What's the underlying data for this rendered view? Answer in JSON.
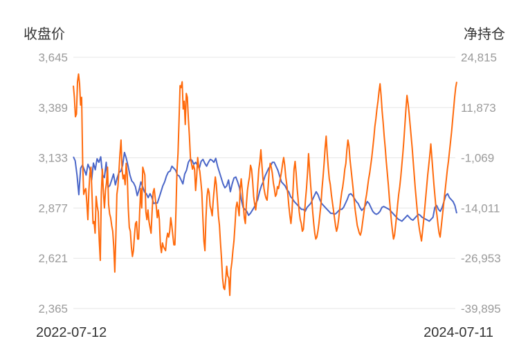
{
  "chart_data": {
    "type": "line",
    "left_axis_title": "收盘价",
    "right_axis_title": "净持仓",
    "x_start_label": "2022-07-12",
    "x_end_label": "2024-07-11",
    "left_ticks": [
      "3,645",
      "3,389",
      "3,133",
      "2,877",
      "2,621",
      "2,365"
    ],
    "right_ticks": [
      "24,815",
      "11,873",
      "-1,069",
      "-14,011",
      "-26,953",
      "-39,895"
    ],
    "left_range": [
      2365,
      3645
    ],
    "right_range": [
      -39895,
      24815
    ],
    "grid": true,
    "colors": {
      "close": "#4a66c8",
      "net": "#ff6a0c"
    },
    "series": [
      {
        "key": "close",
        "axis": "left",
        "values": [
          3138,
          3118,
          3045,
          2945,
          3080,
          3096,
          3072,
          3045,
          3100,
          3078,
          3020,
          3106,
          3072,
          3128,
          3110,
          3138,
          3045,
          3032,
          3110,
          2982,
          2992,
          3020,
          3050,
          2995,
          3030,
          3058,
          3065,
          3095,
          3160,
          3130,
          3090,
          3045,
          3015,
          3005,
          2985,
          2940,
          2970,
          3010,
          2985,
          2958,
          2950,
          2930,
          2950,
          2932,
          2900,
          2903,
          2902,
          2930,
          2960,
          2990,
          3010,
          3040,
          3060,
          3065,
          3090,
          3080,
          3070,
          3045,
          3040,
          3020,
          3000,
          3050,
          3070,
          3110,
          3125,
          3120,
          3100,
          3110,
          3095,
          3080,
          3115,
          3125,
          3105,
          3090,
          3110,
          3125,
          3120,
          3110,
          3130,
          3090,
          3060,
          3030,
          3000,
          2980,
          2990,
          3020,
          2960,
          3000,
          3030,
          3035,
          3010,
          2980,
          2920,
          2880,
          2870,
          2860,
          2840,
          2850,
          2865,
          2880,
          2900,
          2920,
          2960,
          2990,
          3010,
          3040,
          3060,
          3080,
          3090,
          3110,
          3110,
          3090,
          3070,
          3040,
          3010,
          3000,
          2990,
          2970,
          2960,
          2935,
          2925,
          2910,
          2900,
          2890,
          2880,
          2870,
          2870,
          2860,
          2880,
          2890,
          2900,
          2920,
          2940,
          2960,
          2945,
          2920,
          2900,
          2890,
          2880,
          2870,
          2860,
          2850,
          2850,
          2845,
          2850,
          2860,
          2870,
          2870,
          2880,
          2900,
          2920,
          2945,
          2950,
          2940,
          2925,
          2910,
          2900,
          2880,
          2865,
          2875,
          2890,
          2910,
          2900,
          2880,
          2860,
          2850,
          2845,
          2850,
          2860,
          2880,
          2885,
          2880,
          2875,
          2870,
          2860,
          2850,
          2840,
          2830,
          2820,
          2815,
          2810,
          2820,
          2830,
          2840,
          2830,
          2820,
          2815,
          2825,
          2835,
          2845,
          2840,
          2830,
          2825,
          2820,
          2815,
          2810,
          2820,
          2830,
          2880,
          2890,
          2870,
          2860,
          2880,
          2910,
          2940,
          2950,
          2930,
          2920,
          2910,
          2890,
          2850
        ]
      },
      {
        "key": "net",
        "axis": "right",
        "values": [
          17500,
          14500,
          9500,
          10200,
          18500,
          20500,
          18000,
          12500,
          14500,
          -2500,
          -10500,
          -9500,
          -9000,
          -12500,
          -17000,
          -9500,
          -5000,
          -3500,
          -10500,
          -18000,
          -17500,
          -20500,
          -11000,
          -13500,
          -15000,
          -22500,
          -27500,
          -10000,
          -4000,
          -10000,
          -14000,
          -9500,
          -7500,
          -3500,
          -13000,
          -15500,
          -16500,
          -18500,
          -20000,
          -24000,
          -30500,
          -21500,
          -10500,
          -8500,
          -4500,
          0,
          3500,
          -4000,
          -6500,
          -5500,
          -8000,
          -2500,
          -5500,
          -14000,
          -19000,
          -20000,
          -24000,
          -26500,
          -25000,
          -21000,
          -18000,
          -17500,
          -22000,
          -22000,
          -15000,
          -9000,
          -14000,
          -3500,
          -4500,
          -5500,
          -15000,
          -17000,
          -14500,
          -17500,
          -19000,
          -20500,
          -15000,
          -10000,
          -9000,
          -11500,
          -13500,
          -16500,
          -14500,
          -17000,
          -23500,
          -25500,
          -23000,
          -24000,
          -24500,
          -25000,
          -22000,
          -20500,
          -21500,
          -20000,
          -16500,
          -18500,
          -21000,
          -23500,
          -23500,
          -15000,
          -4500,
          0,
          8500,
          17500,
          17000,
          18500,
          11500,
          13500,
          7500,
          15500,
          14500,
          9000,
          4500,
          -1000,
          -2500,
          -4000,
          -3000,
          -4000,
          -9500,
          -6000,
          -1000,
          -3500,
          -4500,
          -7000,
          -10000,
          -16500,
          -22500,
          -25000,
          -16500,
          -11000,
          -9000,
          -10000,
          -13500,
          -14500,
          -16000,
          -12000,
          -9000,
          -6000,
          -8000,
          -12000,
          -16000,
          -18500,
          -23000,
          -27000,
          -32000,
          -34500,
          -35000,
          -32500,
          -29000,
          -31500,
          -32000,
          -36500,
          -30000,
          -28000,
          -25000,
          -22500,
          -18500,
          -14000,
          -12500,
          -14000,
          -16000,
          -9000,
          -6500,
          -9500,
          -13000,
          -16500,
          -18000,
          -13000,
          -9500,
          -7500,
          -6000,
          -3000,
          -4000,
          -7000,
          -11000,
          -13000,
          -14500,
          -12000,
          -8000,
          -4000,
          -2000,
          1000,
          -3000,
          -6500,
          -9000,
          -10500,
          -11500,
          -12000,
          -8500,
          -4500,
          -2500,
          -3500,
          -5000,
          -7500,
          -9000,
          -11000,
          -10500,
          -8500,
          -9000,
          -7500,
          -6000,
          -4500,
          -2500,
          -1000,
          -3000,
          -6000,
          -8000,
          -10500,
          -13500,
          -16000,
          -18000,
          -15000,
          -9500,
          -4000,
          -2000,
          -5000,
          -9000,
          -12000,
          -15000,
          -17000,
          -18000,
          -20000,
          -19500,
          -16000,
          -12000,
          -9000,
          -5000,
          0,
          -4000,
          -8000,
          -11500,
          -15000,
          -18000,
          -20500,
          -22000,
          -21500,
          -20000,
          -18000,
          -15500,
          -13000,
          -9000,
          -6000,
          -2500,
          1500,
          4500,
          0,
          -3500,
          -6500,
          -8000,
          -10500,
          -12500,
          -14500,
          -16500,
          -18500,
          -20000,
          -19000,
          -17000,
          -14500,
          -12000,
          -10000,
          -8500,
          -6500,
          -4000,
          -2500,
          1000,
          3500,
          2000,
          -1500,
          -4000,
          -6500,
          -9000,
          -12000,
          -14500,
          -16500,
          -18500,
          -19500,
          -20500,
          -21000,
          -20000,
          -18000,
          -16000,
          -14000,
          -12000,
          -10500,
          -8500,
          -6500,
          -5000,
          -3000,
          -1000,
          1500,
          4000,
          7000,
          9000,
          11500,
          13500,
          16000,
          18000,
          15000,
          11000,
          8000,
          4500,
          1500,
          -2000,
          -5000,
          -8000,
          -11500,
          -14500,
          -17500,
          -20000,
          -22000,
          -21000,
          -18500,
          -16000,
          -13000,
          -10500,
          -8500,
          -6000,
          -3000,
          0,
          3500,
          7500,
          11500,
          15000,
          13000,
          10500,
          7500,
          4500,
          1500,
          -2000,
          -5500,
          -9000,
          -12000,
          -15000,
          -17500,
          -19500,
          -21000,
          -22500,
          -20000,
          -17500,
          -14500,
          -11500,
          -8500,
          -5500,
          -3000,
          -500,
          2500,
          -1000,
          -4500,
          -8000,
          -11000,
          -14000,
          -16000,
          -18500,
          -20500,
          -21500,
          -19000,
          -16500,
          -14000,
          -11500,
          -9000,
          -6500,
          -4000,
          -2000,
          500,
          3000,
          5500,
          8500,
          11500,
          14500,
          17000,
          18500
        ]
      }
    ]
  }
}
